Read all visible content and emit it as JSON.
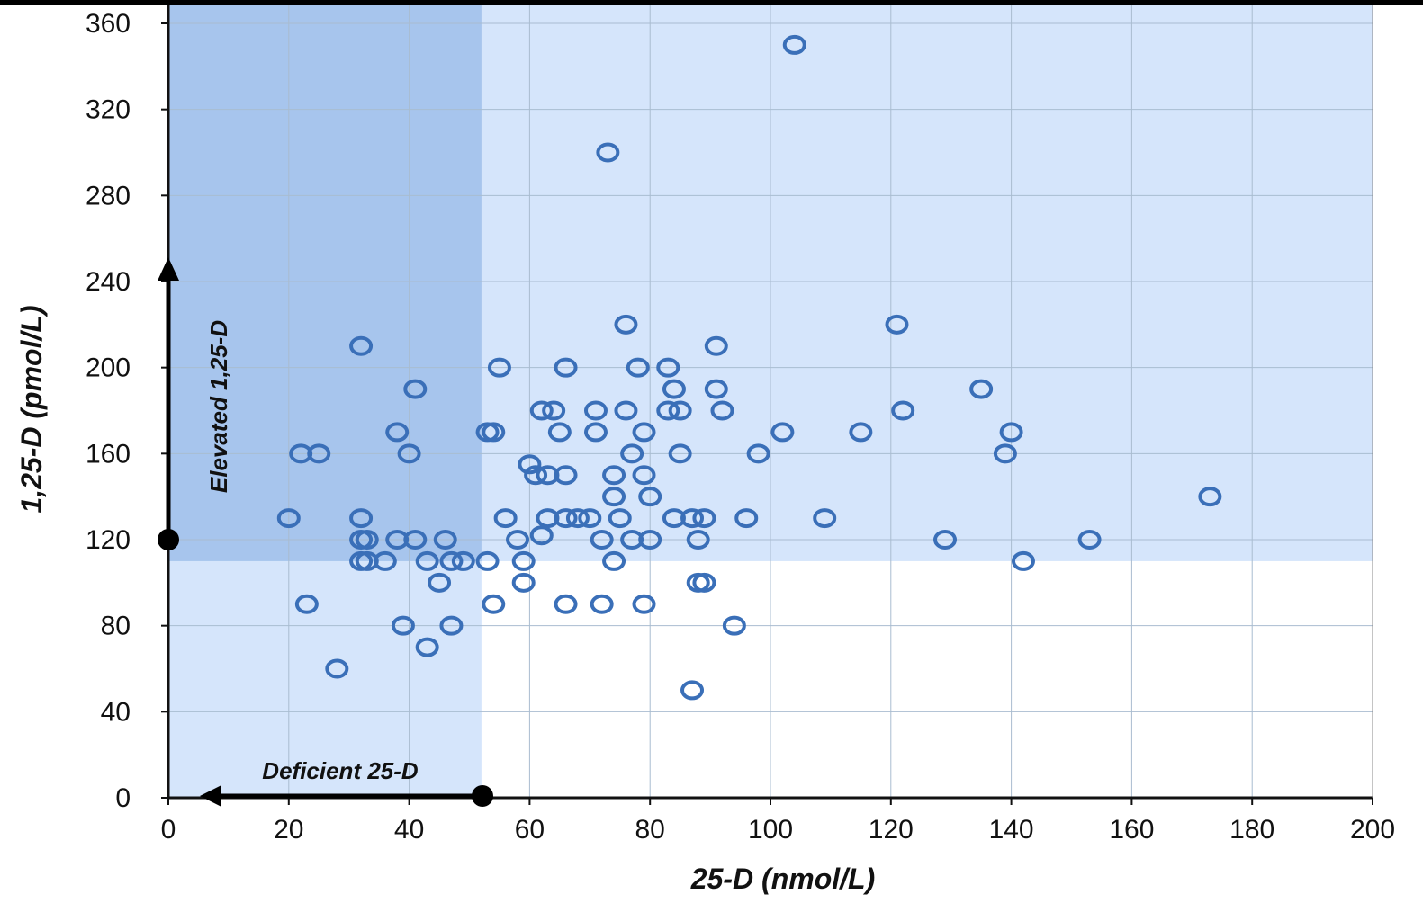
{
  "colors": {
    "point": "#3a6fb8",
    "region_light": "#d5e5fb",
    "region_dark": "#9fc0ea",
    "grid": "#a9bcd0",
    "axis": "#111111"
  },
  "chart_data": {
    "type": "scatter",
    "xlabel": "25-D (nmol/L)",
    "ylabel": "1,25-D (pmol/L)",
    "xlim": [
      0,
      200
    ],
    "ylim": [
      0,
      360
    ],
    "x_ticks": [
      "0",
      "20",
      "40",
      "60",
      "80",
      "100",
      "120",
      "140",
      "160",
      "180",
      "200"
    ],
    "y_ticks": [
      "0",
      "40",
      "80",
      "120",
      "160",
      "200",
      "240",
      "280",
      "320",
      "360"
    ],
    "grid": true,
    "regions": {
      "deficient_25d_x_max": 52,
      "elevated_125d_y_min": 110
    },
    "annotations": {
      "elevated": "Elevated 1,25-D",
      "deficient": "Deficient 25-D"
    },
    "points": [
      [
        104,
        350
      ],
      [
        73,
        300
      ],
      [
        76,
        220
      ],
      [
        121,
        220
      ],
      [
        32,
        210
      ],
      [
        91,
        210
      ],
      [
        55,
        200
      ],
      [
        66,
        200
      ],
      [
        78,
        200
      ],
      [
        83,
        200
      ],
      [
        41,
        190
      ],
      [
        84,
        190
      ],
      [
        91,
        190
      ],
      [
        135,
        190
      ],
      [
        62,
        180
      ],
      [
        64,
        180
      ],
      [
        71,
        180
      ],
      [
        76,
        180
      ],
      [
        83,
        180
      ],
      [
        85,
        180
      ],
      [
        92,
        180
      ],
      [
        122,
        180
      ],
      [
        38,
        170
      ],
      [
        53,
        170
      ],
      [
        54,
        170
      ],
      [
        65,
        170
      ],
      [
        71,
        170
      ],
      [
        79,
        170
      ],
      [
        102,
        170
      ],
      [
        115,
        170
      ],
      [
        140,
        170
      ],
      [
        22,
        160
      ],
      [
        25,
        160
      ],
      [
        40,
        160
      ],
      [
        77,
        160
      ],
      [
        85,
        160
      ],
      [
        98,
        160
      ],
      [
        139,
        160
      ],
      [
        60,
        155
      ],
      [
        61,
        150
      ],
      [
        63,
        150
      ],
      [
        66,
        150
      ],
      [
        74,
        150
      ],
      [
        79,
        150
      ],
      [
        74,
        140
      ],
      [
        80,
        140
      ],
      [
        173,
        140
      ],
      [
        20,
        130
      ],
      [
        32,
        130
      ],
      [
        56,
        130
      ],
      [
        63,
        130
      ],
      [
        66,
        130
      ],
      [
        68,
        130
      ],
      [
        70,
        130
      ],
      [
        75,
        130
      ],
      [
        84,
        130
      ],
      [
        87,
        130
      ],
      [
        89,
        130
      ],
      [
        96,
        130
      ],
      [
        109,
        130
      ],
      [
        32,
        120
      ],
      [
        33,
        120
      ],
      [
        38,
        120
      ],
      [
        41,
        120
      ],
      [
        46,
        120
      ],
      [
        58,
        120
      ],
      [
        62,
        122
      ],
      [
        72,
        120
      ],
      [
        77,
        120
      ],
      [
        80,
        120
      ],
      [
        88,
        120
      ],
      [
        129,
        120
      ],
      [
        153,
        120
      ],
      [
        32,
        110
      ],
      [
        33,
        110
      ],
      [
        36,
        110
      ],
      [
        43,
        110
      ],
      [
        47,
        110
      ],
      [
        49,
        110
      ],
      [
        53,
        110
      ],
      [
        59,
        110
      ],
      [
        74,
        110
      ],
      [
        142,
        110
      ],
      [
        45,
        100
      ],
      [
        59,
        100
      ],
      [
        88,
        100
      ],
      [
        89,
        100
      ],
      [
        23,
        90
      ],
      [
        54,
        90
      ],
      [
        66,
        90
      ],
      [
        72,
        90
      ],
      [
        79,
        90
      ],
      [
        39,
        80
      ],
      [
        47,
        80
      ],
      [
        94,
        80
      ],
      [
        43,
        70
      ],
      [
        28,
        60
      ],
      [
        87,
        50
      ]
    ]
  }
}
